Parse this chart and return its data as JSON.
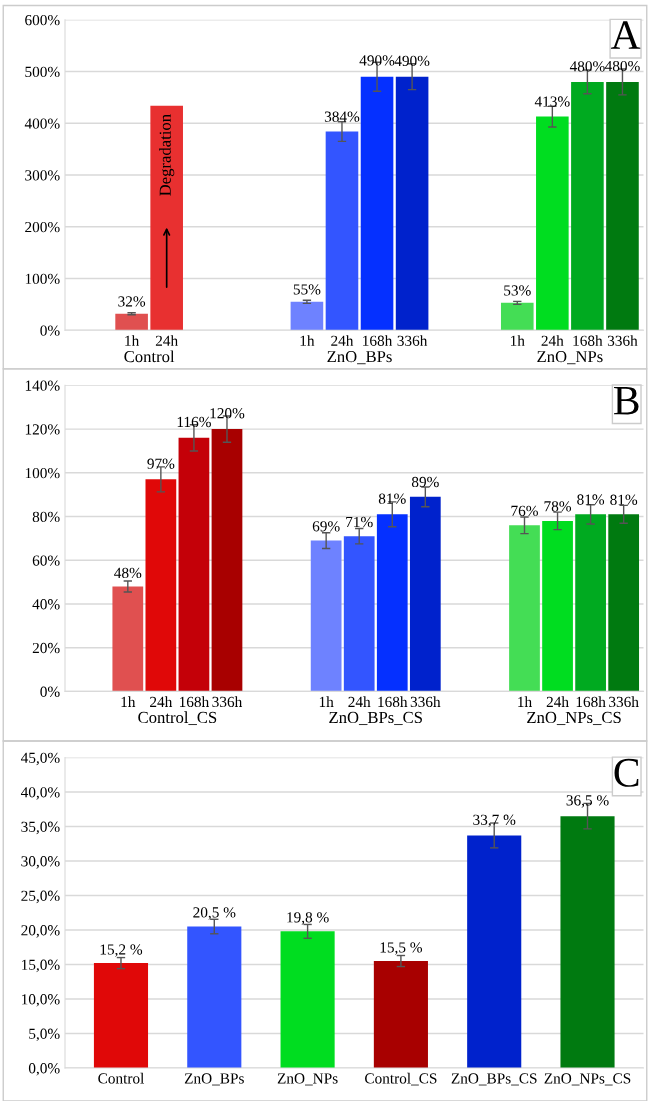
{
  "chart_data": [
    {
      "type": "bar",
      "categories": [
        "1h",
        "24h",
        null,
        null,
        null,
        "1h",
        "24h",
        "168h",
        "336h",
        null,
        null,
        "1h",
        "24h",
        "168h",
        "336h"
      ],
      "values": [
        32,
        434,
        null,
        null,
        null,
        55,
        384,
        490,
        490,
        null,
        null,
        53,
        413,
        480,
        480
      ],
      "errors": [
        2,
        null,
        null,
        null,
        null,
        3,
        19,
        28,
        25,
        null,
        null,
        3,
        20,
        23,
        25
      ],
      "colors": [
        "#e05050",
        "#e83030",
        null,
        null,
        null,
        "#6e82ff",
        "#3355ff",
        "#0530ff",
        "#0022cc",
        null,
        null,
        "#44dd55",
        "#00dd20",
        "#00aa20",
        "#007a10"
      ],
      "value_labels": [
        "32%",
        null,
        null,
        null,
        null,
        "55%",
        "384%",
        "490%",
        "490%",
        null,
        null,
        "53%",
        "413%",
        "480%",
        "480%"
      ],
      "ylim": [
        0,
        600
      ],
      "yticks": [
        {
          "value": 0,
          "label": "0%"
        },
        {
          "value": 100,
          "label": "100%"
        },
        {
          "value": 200,
          "label": "200%"
        },
        {
          "value": 300,
          "label": "300%"
        },
        {
          "value": 400,
          "label": "400%"
        },
        {
          "value": 500,
          "label": "500%"
        },
        {
          "value": 600,
          "label": "600%"
        }
      ],
      "annotations": [
        "Control",
        "ZnO_BPs",
        "ZnO_NPs",
        "Degradation",
        "A"
      ],
      "grid": "y"
    },
    {
      "type": "bar",
      "categories": [
        "1h",
        "24h",
        "168h",
        "336h",
        null,
        null,
        "1h",
        "24h",
        "168h",
        "336h",
        null,
        null,
        "1h",
        "24h",
        "168h",
        "336h"
      ],
      "values": [
        48,
        97,
        116,
        120,
        null,
        null,
        69,
        71,
        81,
        89,
        null,
        null,
        76,
        78,
        81,
        81
      ],
      "errors": [
        2.5,
        5.7,
        6,
        6,
        null,
        null,
        3.6,
        3.5,
        5.7,
        4.5,
        null,
        null,
        3.8,
        4,
        4.4,
        4.1
      ],
      "colors": [
        "#e05050",
        "#e00808",
        "#c40008",
        "#a80000",
        null,
        null,
        "#6e82ff",
        "#3355ff",
        "#0530ff",
        "#0022cc",
        null,
        null,
        "#44dd55",
        "#00dd20",
        "#00aa20",
        "#007a10"
      ],
      "value_labels": [
        "48%",
        "97%",
        "116%",
        "120%",
        null,
        null,
        "69%",
        "71%",
        "81%",
        "89%",
        null,
        null,
        "76%",
        "78%",
        "81%",
        "81%"
      ],
      "ylim": [
        0,
        140
      ],
      "yticks": [
        {
          "value": 0,
          "label": "0%"
        },
        {
          "value": 20,
          "label": "20%"
        },
        {
          "value": 40,
          "label": "40%"
        },
        {
          "value": 60,
          "label": "60%"
        },
        {
          "value": 80,
          "label": "80%"
        },
        {
          "value": 100,
          "label": "100%"
        },
        {
          "value": 120,
          "label": "120%"
        },
        {
          "value": 140,
          "label": "140%"
        }
      ],
      "annotations": [
        "Control_CS",
        "ZnO_BPs_CS",
        "ZnO_NPs_CS",
        "B"
      ],
      "grid": "y"
    },
    {
      "type": "bar",
      "categories": [
        "Control",
        "ZnO_BPs",
        "ZnO_NPs",
        "Control_CS",
        "ZnO_BPs_CS",
        "ZnO_NPs_CS"
      ],
      "values": [
        15.2,
        20.5,
        19.8,
        15.5,
        33.7,
        36.5
      ],
      "errors": [
        0.8,
        1.05,
        1,
        0.8,
        1.8,
        1.85
      ],
      "colors": [
        "#e00808",
        "#3355ff",
        "#00dd20",
        "#a80000",
        "#0022cc",
        "#007a10"
      ],
      "value_labels": [
        "15,2 %",
        "20,5 %",
        "19,8 %",
        "15,5 %",
        "33,7 %",
        "36,5 %"
      ],
      "ylim": [
        0,
        45
      ],
      "yticks": [
        {
          "value": 0,
          "label": "0,0%"
        },
        {
          "value": 5,
          "label": "5,0%"
        },
        {
          "value": 10,
          "label": "10,0%"
        },
        {
          "value": 15,
          "label": "15,0%"
        },
        {
          "value": 20,
          "label": "20,0%"
        },
        {
          "value": 25,
          "label": "25,0%"
        },
        {
          "value": 30,
          "label": "30,0%"
        },
        {
          "value": 35,
          "label": "35,0%"
        },
        {
          "value": 40,
          "label": "40,0%"
        },
        {
          "value": 45,
          "label": "45,0%"
        }
      ],
      "annotations": [
        "C"
      ],
      "grid": "y"
    }
  ]
}
